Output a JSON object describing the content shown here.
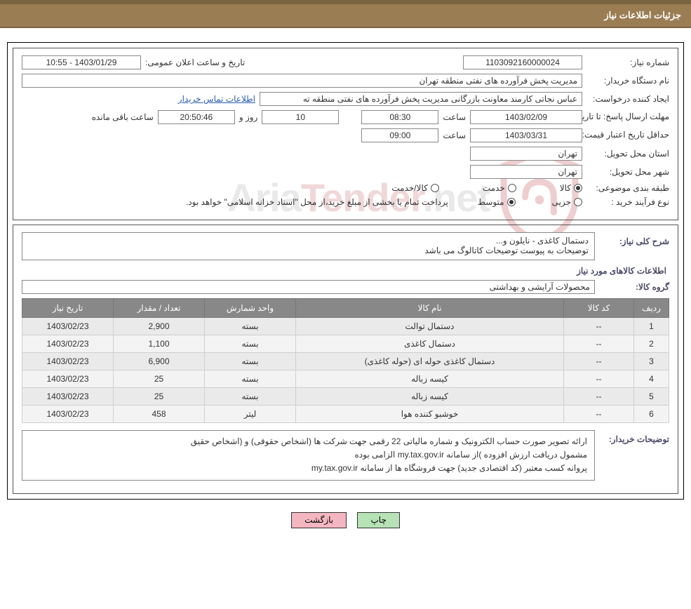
{
  "header": {
    "title": "جزئیات اطلاعات نیاز"
  },
  "info": {
    "need_number_label": "شماره نیاز:",
    "need_number": "1103092160000024",
    "announce_label": "تاریخ و ساعت اعلان عمومی:",
    "announce_value": "1403/01/29 - 10:55",
    "buyer_org_label": "نام دستگاه خریدار:",
    "buyer_org": "مدیریت پخش فرآورده های نفتی منطقه تهران",
    "requester_label": "ایجاد کننده درخواست:",
    "requester": "عباس نجاتی کارمند معاونت بازرگانی مدیریت پخش فرآورده های نفتی منطقه ته",
    "contact_link": "اطلاعات تماس خریدار",
    "deadline_label": "مهلت ارسال پاسخ: تا تاریخ:",
    "deadline_date": "1403/02/09",
    "time_label": "ساعت",
    "deadline_time": "08:30",
    "days_value": "10",
    "days_suffix": "روز و",
    "remaining_time": "20:50:46",
    "remaining_suffix": "ساعت باقی مانده",
    "validity_label": "حداقل تاریخ اعتبار قیمت: تا تاریخ:",
    "validity_date": "1403/03/31",
    "validity_time": "09:00",
    "province_label": "استان محل تحویل:",
    "province": "تهران",
    "city_label": "شهر محل تحویل:",
    "city": "تهران",
    "category_label": "طبقه بندی موضوعی:",
    "cat_goods": "کالا",
    "cat_service": "خدمت",
    "cat_goods_service": "کالا/خدمت",
    "process_label": "نوع فرآیند خرید :",
    "proc_partial": "جزیی",
    "proc_medium": "متوسط",
    "process_note": "پرداخت تمام یا بخشی از مبلغ خرید،از محل \"اسناد خزانه اسلامی\" خواهد بود."
  },
  "desc": {
    "overall_label": "شرح کلی نیاز:",
    "overall_line1": "دستمال کاغذی - نایلون و...",
    "overall_line2": "توضیحات به پیوست توضیحات کاتالوگ می باشد",
    "items_title": "اطلاعات کالاهای مورد نیاز",
    "group_label": "گروه کالا:",
    "group_value": "محصولات آرایشی و بهداشتی"
  },
  "table": {
    "headers": [
      "ردیف",
      "کد کالا",
      "نام کالا",
      "واحد شمارش",
      "تعداد / مقدار",
      "تاریخ نیاز"
    ],
    "rows": [
      [
        "1",
        "--",
        "دستمال توالت",
        "بسته",
        "2,900",
        "1403/02/23"
      ],
      [
        "2",
        "--",
        "دستمال کاغذی",
        "بسته",
        "1,100",
        "1403/02/23"
      ],
      [
        "3",
        "--",
        "دستمال کاغذی حوله ای (حوله کاغذی)",
        "بسته",
        "6,900",
        "1403/02/23"
      ],
      [
        "4",
        "--",
        "کیسه زباله",
        "بسته",
        "25",
        "1403/02/23"
      ],
      [
        "5",
        "--",
        "کیسه زباله",
        "بسته",
        "25",
        "1403/02/23"
      ],
      [
        "6",
        "--",
        "خوشبو کننده هوا",
        "لیتر",
        "458",
        "1403/02/23"
      ]
    ]
  },
  "buyer_notes": {
    "label": "توضیحات خریدار:",
    "line1": "ارائه  تصویر صورت حساب الکترونیک و شماره مالیاتی 22 رقمی  جهت شرکت ها (اشخاص حقوقی) و (اشخاص حقیق",
    "line2": "مشمول دریافت ارزش افزوده )از سامانه my.tax.gov.ir  الزامی بوده",
    "line3": "پروانه کسب معتبر (کد اقتصادی جدید) جهت فروشگاه ها از سامانه my.tax.gov.ir"
  },
  "buttons": {
    "print": "چاپ",
    "back": "بازگشت"
  },
  "watermark": {
    "text_pre": "Aria",
    "text_accent": "Tender",
    "text_post": ".net"
  },
  "colors": {
    "header_bg": "#9a7d53",
    "header_border": "#7a6340",
    "th_bg": "#888888",
    "td_bg": "#eaeaea",
    "btn_print": "#b6e2b6",
    "btn_back": "#f4b6c0",
    "link": "#2a5db0"
  }
}
